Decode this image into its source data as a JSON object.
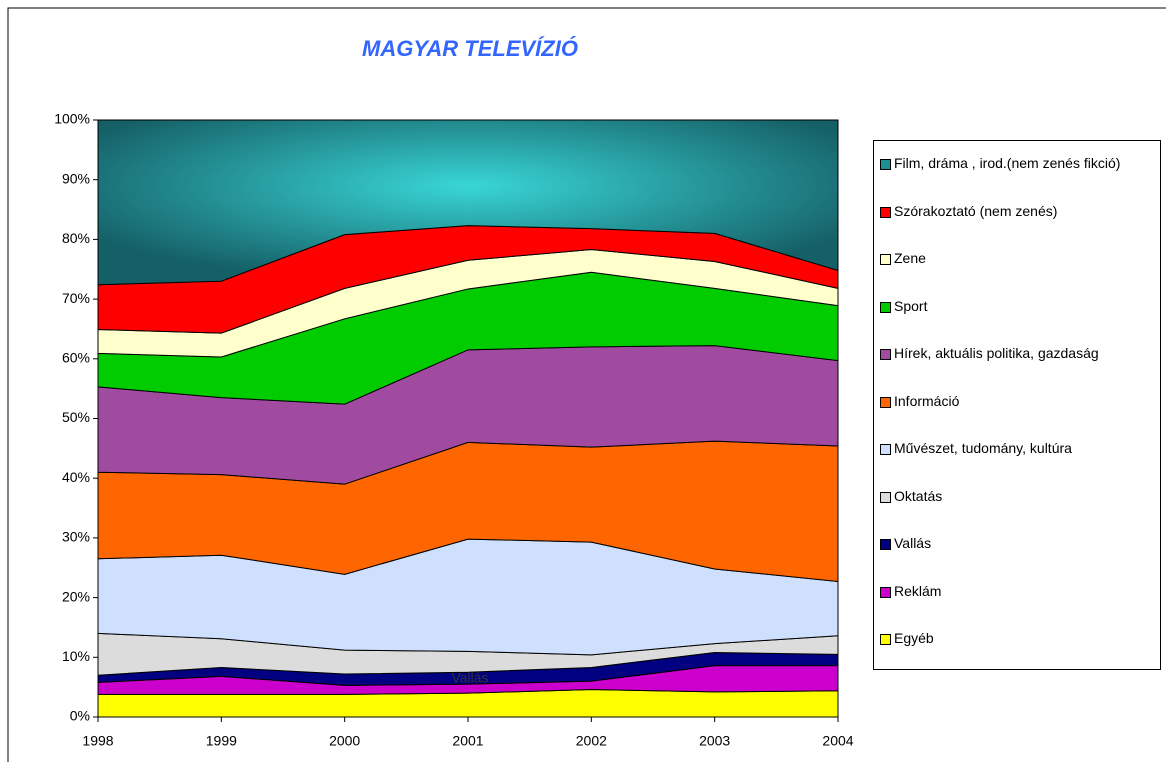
{
  "chart_data": {
    "type": "stacked_area",
    "title": "MAGYAR TELEVÍZIÓ",
    "categories": [
      "1998",
      "1999",
      "2000",
      "2001",
      "2002",
      "2003",
      "2004"
    ],
    "ylim": [
      0,
      100
    ],
    "yticks": [
      {
        "value": 0,
        "label": "0%"
      },
      {
        "value": 10,
        "label": "10%"
      },
      {
        "value": 20,
        "label": "20%"
      },
      {
        "value": 30,
        "label": "30%"
      },
      {
        "value": 40,
        "label": "40%"
      },
      {
        "value": 50,
        "label": "50%"
      },
      {
        "value": 60,
        "label": "60%"
      },
      {
        "value": 70,
        "label": "70%"
      },
      {
        "value": 80,
        "label": "80%"
      },
      {
        "value": 90,
        "label": "90%"
      },
      {
        "value": 100,
        "label": "100%"
      }
    ],
    "annotation": "Vallás",
    "series": [
      {
        "name": "Egyéb",
        "color": "#ffff00",
        "values": [
          3.8,
          3.8,
          3.8,
          4.0,
          4.6,
          4.2,
          4.4
        ]
      },
      {
        "name": "Reklám",
        "color": "#cc00cc",
        "values": [
          2.0,
          3.0,
          1.5,
          1.5,
          1.4,
          4.4,
          4.2
        ]
      },
      {
        "name": "Vallás",
        "color": "#000080",
        "values": [
          1.2,
          1.5,
          1.9,
          2.0,
          2.3,
          2.2,
          1.9
        ]
      },
      {
        "name": "Oktatás",
        "color": "#dcdcdc",
        "values": [
          7.0,
          4.8,
          4.0,
          3.5,
          2.1,
          1.5,
          3.1
        ]
      },
      {
        "name": "Művészet, tudomány, kultúra",
        "color": "#cfe0ff",
        "values": [
          12.5,
          14.0,
          12.7,
          18.8,
          18.9,
          12.5,
          9.1
        ]
      },
      {
        "name": "Információ",
        "color": "#ff6600",
        "values": [
          14.5,
          13.5,
          15.1,
          16.2,
          15.9,
          21.4,
          22.7
        ]
      },
      {
        "name": "Hírek, aktuális politika, gazdaság",
        "color": "#a04aa0",
        "values": [
          14.3,
          12.9,
          13.4,
          15.5,
          16.8,
          16.0,
          14.3
        ]
      },
      {
        "name": "Sport",
        "color": "#00cc00",
        "values": [
          5.6,
          6.8,
          14.3,
          10.2,
          12.5,
          9.6,
          9.2
        ]
      },
      {
        "name": "Zene",
        "color": "#ffffcc",
        "values": [
          4.0,
          4.0,
          5.1,
          4.8,
          3.8,
          4.5,
          2.9
        ]
      },
      {
        "name": "Szórakoztató (nem zenés)",
        "color": "#ff0000",
        "values": [
          7.5,
          8.7,
          9.0,
          5.8,
          3.5,
          4.7,
          3.0
        ]
      },
      {
        "name": "Film, dráma , irod.(nem zenés fikció)",
        "color": "#1e8f95",
        "values": [
          27.6,
          27.0,
          19.2,
          17.7,
          18.2,
          19.0,
          25.2
        ]
      }
    ]
  }
}
